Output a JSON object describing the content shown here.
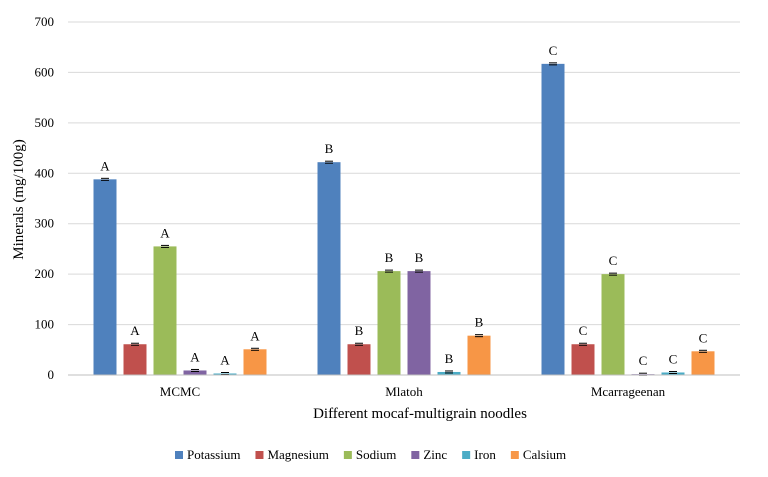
{
  "chart_data": {
    "type": "bar",
    "title": "",
    "xlabel": "Different mocaf-multigrain noodles",
    "ylabel": "Minerals (mg/100g)",
    "ylim": [
      0,
      700
    ],
    "yticks": [
      0,
      100,
      200,
      300,
      400,
      500,
      600,
      700
    ],
    "grid": true,
    "legend_position": "bottom",
    "categories": [
      "MCMC",
      "Mlatoh",
      "Mcarrageenan"
    ],
    "series": [
      {
        "name": "Potassium",
        "color": "#4F81BD",
        "values": [
          388,
          422,
          617
        ],
        "labels": [
          "A",
          "B",
          "C"
        ]
      },
      {
        "name": "Magnesium",
        "color": "#C0504D",
        "values": [
          61,
          61,
          61
        ],
        "labels": [
          "A",
          "B",
          "C"
        ]
      },
      {
        "name": "Sodium",
        "color": "#9BBB59",
        "values": [
          255,
          206,
          200
        ],
        "labels": [
          "A",
          "B",
          "C"
        ]
      },
      {
        "name": "Zinc",
        "color": "#8064A2",
        "values": [
          9,
          206,
          1
        ],
        "labels": [
          "A",
          "B",
          "C"
        ]
      },
      {
        "name": "Iron",
        "color": "#4BACC6",
        "values": [
          3,
          6,
          5
        ],
        "labels": [
          "A",
          "B",
          "C"
        ]
      },
      {
        "name": "Calsium",
        "color": "#F79646",
        "values": [
          51,
          78,
          47
        ],
        "labels": [
          "A",
          "B",
          "C"
        ]
      }
    ]
  }
}
